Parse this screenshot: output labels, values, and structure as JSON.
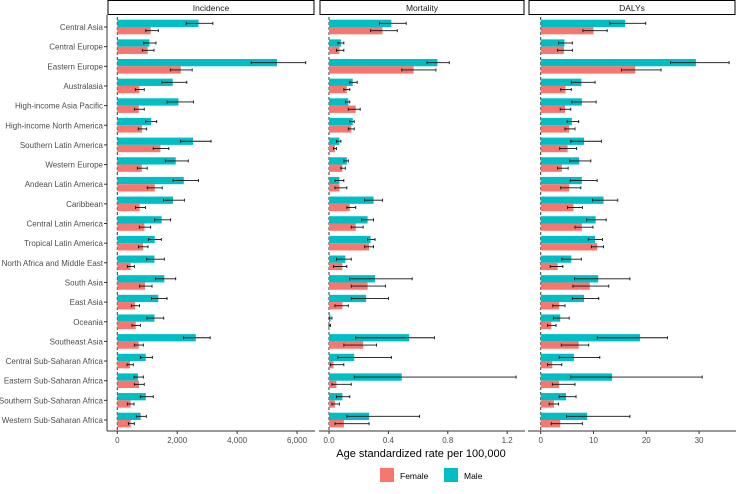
{
  "chart_data": {
    "type": "bar",
    "orientation": "horizontal",
    "xlabel": "Age standardized rate per 100,000",
    "legend": {
      "position": "bottom",
      "entries": [
        "Female",
        "Male"
      ]
    },
    "colors": {
      "Female": "#F8766D",
      "Male": "#00BFC4"
    },
    "categories": [
      "Central Asia",
      "Central Europe",
      "Eastern Europe",
      "Australasia",
      "High-income Asia Pacific",
      "High-income North America",
      "Southern Latin America",
      "Western Europe",
      "Andean Latin America",
      "Caribbean",
      "Central Latin America",
      "Tropical Latin America",
      "North Africa and Middle East",
      "South Asia",
      "East Asia",
      "Oceania",
      "Southeast Asia",
      "Central Sub-Saharan Africa",
      "Eastern Sub-Saharan Africa",
      "Southern Sub-Saharan Africa",
      "Western Sub-Saharan Africa"
    ],
    "panels": [
      {
        "title": "Incidence",
        "xlim": [
          0,
          6600
        ],
        "ticks": [
          0,
          2000,
          4000,
          6000
        ],
        "tick_labels": [
          "0",
          "2,000",
          "4,000",
          "6,000"
        ],
        "series": [
          {
            "name": "Male",
            "values": [
              2710,
              1070,
              5330,
              1850,
              2040,
              1125,
              2530,
              1950,
              2220,
              1860,
              1480,
              1250,
              1240,
              1570,
              1370,
              1240,
              2620,
              950,
              690,
              950,
              780
            ],
            "lower": [
              2300,
              880,
              4470,
              1490,
              1660,
              950,
              2110,
              1600,
              1860,
              1540,
              1240,
              1040,
              980,
              1280,
              1140,
              990,
              2210,
              770,
              560,
              770,
              635
            ],
            "upper": [
              3190,
              1290,
              6290,
              2320,
              2540,
              1315,
              3130,
              2370,
              2710,
              2240,
              1780,
              1470,
              1570,
              1950,
              1660,
              1550,
              3100,
              1170,
              870,
              1200,
              970
            ]
          },
          {
            "name": "Female",
            "values": [
              1115,
              1015,
              2120,
              735,
              715,
              825,
              1440,
              815,
              1250,
              745,
              905,
              860,
              445,
              925,
              590,
              615,
              715,
              425,
              725,
              445,
              445
            ],
            "lower": [
              950,
              835,
              1770,
              600,
              570,
              700,
              1200,
              670,
              1000,
              610,
              735,
              710,
              335,
              745,
              470,
              490,
              570,
              325,
              570,
              335,
              370
            ],
            "upper": [
              1370,
              1225,
              2500,
              900,
              900,
              980,
              1720,
              1000,
              1500,
              940,
              1115,
              1025,
              570,
              1160,
              745,
              770,
              870,
              535,
              900,
              560,
              570
            ]
          }
        ]
      },
      {
        "title": "Mortality",
        "xlim": [
          0,
          1.32
        ],
        "ticks": [
          0,
          0.4,
          0.8,
          1.2
        ],
        "tick_labels": [
          "0.0",
          "0.4",
          "0.8",
          "1.2"
        ],
        "series": [
          {
            "name": "Male",
            "values": [
              0.42,
              0.08,
              0.73,
              0.16,
              0.13,
              0.16,
              0.07,
              0.12,
              0.07,
              0.3,
              0.26,
              0.28,
              0.11,
              0.31,
              0.25,
              0.01,
              0.54,
              0.17,
              0.49,
              0.09,
              0.27
            ],
            "lower": [
              0.34,
              0.06,
              0.66,
              0.14,
              0.11,
              0.14,
              0.05,
              0.1,
              0.04,
              0.24,
              0.22,
              0.26,
              0.05,
              0.14,
              0.15,
              0.0,
              0.18,
              0.06,
              0.17,
              0.05,
              0.12
            ],
            "upper": [
              0.52,
              0.1,
              0.81,
              0.19,
              0.14,
              0.17,
              0.08,
              0.13,
              0.1,
              0.36,
              0.3,
              0.31,
              0.15,
              0.56,
              0.4,
              0.02,
              0.71,
              0.42,
              1.26,
              0.14,
              0.61
            ]
          },
          {
            "name": "Female",
            "values": [
              0.36,
              0.07,
              0.57,
              0.12,
              0.18,
              0.15,
              0.04,
              0.09,
              0.07,
              0.14,
              0.18,
              0.27,
              0.09,
              0.26,
              0.09,
              0.005,
              0.23,
              0.03,
              0.05,
              0.04,
              0.1
            ],
            "lower": [
              0.28,
              0.05,
              0.49,
              0.1,
              0.13,
              0.13,
              0.03,
              0.08,
              0.04,
              0.12,
              0.15,
              0.24,
              0.03,
              0.15,
              0.04,
              0.0,
              0.1,
              0.01,
              0.02,
              0.02,
              0.04
            ],
            "upper": [
              0.46,
              0.1,
              0.72,
              0.14,
              0.21,
              0.17,
              0.05,
              0.11,
              0.12,
              0.18,
              0.23,
              0.3,
              0.12,
              0.38,
              0.13,
              0.01,
              0.32,
              0.1,
              0.15,
              0.07,
              0.27
            ]
          }
        ]
      },
      {
        "title": "DALYs",
        "xlim": [
          0,
          37
        ],
        "ticks": [
          0,
          10,
          20,
          30
        ],
        "tick_labels": [
          "0",
          "10",
          "20",
          "30"
        ],
        "series": [
          {
            "name": "Male",
            "values": [
              16.0,
              4.5,
              29.4,
              7.7,
              7.8,
              5.9,
              8.2,
              7.3,
              7.8,
              11.9,
              10.4,
              10.3,
              5.8,
              10.9,
              8.2,
              3.7,
              18.8,
              6.3,
              13.5,
              4.8,
              8.8
            ],
            "lower": [
              13.1,
              3.4,
              24.6,
              5.8,
              5.9,
              5.0,
              5.7,
              5.5,
              5.6,
              9.8,
              8.7,
              9.0,
              4.0,
              6.4,
              6.0,
              2.4,
              10.7,
              3.5,
              5.7,
              3.5,
              4.9
            ],
            "upper": [
              19.9,
              6.0,
              35.7,
              10.3,
              10.5,
              7.2,
              11.5,
              9.5,
              10.7,
              14.6,
              12.4,
              11.7,
              7.7,
              16.9,
              11.0,
              5.4,
              24.0,
              11.2,
              30.6,
              6.7,
              16.9
            ]
          },
          {
            "name": "Female",
            "values": [
              10.0,
              4.4,
              17.9,
              4.7,
              4.6,
              5.4,
              5.1,
              4.0,
              5.4,
              6.2,
              7.8,
              10.7,
              3.2,
              9.3,
              3.5,
              2.0,
              7.2,
              2.2,
              3.5,
              2.5,
              3.7
            ],
            "lower": [
              8.0,
              3.2,
              15.3,
              3.8,
              3.7,
              4.6,
              3.6,
              3.2,
              3.8,
              5.1,
              6.5,
              9.6,
              1.8,
              6.1,
              2.3,
              1.3,
              3.9,
              1.3,
              2.2,
              1.6,
              2.0
            ],
            "upper": [
              12.6,
              6.0,
              22.8,
              5.8,
              5.7,
              6.5,
              6.8,
              5.2,
              7.6,
              7.9,
              9.9,
              11.9,
              4.2,
              12.9,
              4.6,
              2.9,
              9.1,
              4.0,
              6.5,
              3.4,
              7.9
            ]
          }
        ]
      }
    ]
  }
}
